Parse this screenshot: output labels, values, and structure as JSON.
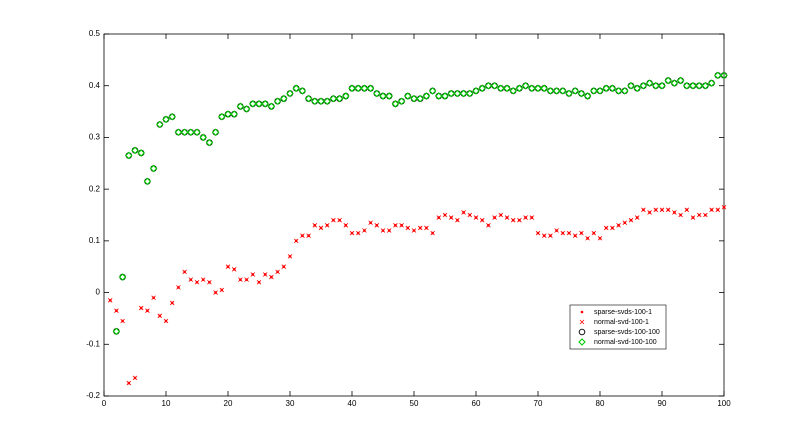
{
  "chart_data": {
    "type": "scatter",
    "x": [
      1,
      2,
      3,
      4,
      5,
      6,
      7,
      8,
      9,
      10,
      11,
      12,
      13,
      14,
      15,
      16,
      17,
      18,
      19,
      20,
      21,
      22,
      23,
      24,
      25,
      26,
      27,
      28,
      29,
      30,
      31,
      32,
      33,
      34,
      35,
      36,
      37,
      38,
      39,
      40,
      41,
      42,
      43,
      44,
      45,
      46,
      47,
      48,
      49,
      50,
      51,
      52,
      53,
      54,
      55,
      56,
      57,
      58,
      59,
      60,
      61,
      62,
      63,
      64,
      65,
      66,
      67,
      68,
      69,
      70,
      71,
      72,
      73,
      74,
      75,
      76,
      77,
      78,
      79,
      80,
      81,
      82,
      83,
      84,
      85,
      86,
      87,
      88,
      89,
      90,
      91,
      92,
      93,
      94,
      95,
      96,
      97,
      98,
      99,
      100
    ],
    "series": [
      {
        "name": "sparse-svds-100-1",
        "color": "#ff0000",
        "marker": "dot",
        "values": [
          -0.015,
          -0.035,
          -0.055,
          -0.175,
          -0.165,
          -0.03,
          -0.035,
          -0.01,
          -0.045,
          -0.055,
          -0.02,
          0.01,
          0.04,
          0.025,
          0.02,
          0.025,
          0.02,
          0.0,
          0.005,
          0.05,
          0.045,
          0.025,
          0.025,
          0.035,
          0.02,
          0.035,
          0.03,
          0.04,
          0.05,
          0.07,
          0.1,
          0.11,
          0.11,
          0.13,
          0.125,
          0.13,
          0.14,
          0.14,
          0.13,
          0.115,
          0.115,
          0.12,
          0.135,
          0.13,
          0.12,
          0.12,
          0.13,
          0.13,
          0.125,
          0.12,
          0.125,
          0.125,
          0.115,
          0.145,
          0.15,
          0.145,
          0.14,
          0.155,
          0.15,
          0.145,
          0.14,
          0.13,
          0.145,
          0.15,
          0.145,
          0.14,
          0.14,
          0.145,
          0.145,
          0.115,
          0.11,
          0.11,
          0.12,
          0.115,
          0.115,
          0.11,
          0.115,
          0.105,
          0.115,
          0.105,
          0.125,
          0.125,
          0.13,
          0.135,
          0.14,
          0.145,
          0.16,
          0.155,
          0.16,
          0.16,
          0.16,
          0.155,
          0.15,
          0.16,
          0.145,
          0.15,
          0.15,
          0.16,
          0.16,
          0.165
        ]
      },
      {
        "name": "normal-svd-100-1",
        "color": "#ff0000",
        "marker": "x",
        "values": [
          -0.015,
          -0.035,
          -0.055,
          -0.175,
          -0.165,
          -0.03,
          -0.035,
          -0.01,
          -0.045,
          -0.055,
          -0.02,
          0.01,
          0.04,
          0.025,
          0.02,
          0.025,
          0.02,
          0.0,
          0.005,
          0.05,
          0.045,
          0.025,
          0.025,
          0.035,
          0.02,
          0.035,
          0.03,
          0.04,
          0.05,
          0.07,
          0.1,
          0.11,
          0.11,
          0.13,
          0.125,
          0.13,
          0.14,
          0.14,
          0.13,
          0.115,
          0.115,
          0.12,
          0.135,
          0.13,
          0.12,
          0.12,
          0.13,
          0.13,
          0.125,
          0.12,
          0.125,
          0.125,
          0.115,
          0.145,
          0.15,
          0.145,
          0.14,
          0.155,
          0.15,
          0.145,
          0.14,
          0.13,
          0.145,
          0.15,
          0.145,
          0.14,
          0.14,
          0.145,
          0.145,
          0.115,
          0.11,
          0.11,
          0.12,
          0.115,
          0.115,
          0.11,
          0.115,
          0.105,
          0.115,
          0.105,
          0.125,
          0.125,
          0.13,
          0.135,
          0.14,
          0.145,
          0.16,
          0.155,
          0.16,
          0.16,
          0.16,
          0.155,
          0.15,
          0.16,
          0.145,
          0.15,
          0.15,
          0.16,
          0.16,
          0.165
        ]
      },
      {
        "name": "sparse-svds-100-100",
        "color": "#000000",
        "marker": "circle",
        "values": [
          null,
          -0.075,
          0.03,
          0.265,
          0.275,
          0.27,
          0.215,
          0.24,
          0.325,
          0.335,
          0.34,
          0.31,
          0.31,
          0.31,
          0.31,
          0.3,
          0.29,
          0.31,
          0.34,
          0.345,
          0.345,
          0.36,
          0.355,
          0.365,
          0.365,
          0.365,
          0.36,
          0.37,
          0.375,
          0.385,
          0.395,
          0.39,
          0.375,
          0.37,
          0.37,
          0.37,
          0.375,
          0.375,
          0.38,
          0.395,
          0.395,
          0.395,
          0.395,
          0.385,
          0.38,
          0.38,
          0.365,
          0.37,
          0.38,
          0.375,
          0.375,
          0.38,
          0.39,
          0.38,
          0.38,
          0.385,
          0.385,
          0.385,
          0.385,
          0.39,
          0.395,
          0.4,
          0.4,
          0.395,
          0.395,
          0.39,
          0.395,
          0.4,
          0.395,
          0.395,
          0.395,
          0.39,
          0.39,
          0.39,
          0.385,
          0.39,
          0.385,
          0.38,
          0.39,
          0.39,
          0.395,
          0.395,
          0.39,
          0.39,
          0.4,
          0.395,
          0.4,
          0.405,
          0.4,
          0.4,
          0.41,
          0.405,
          0.41,
          0.4,
          0.4,
          0.4,
          0.4,
          0.405,
          0.42,
          0.42
        ]
      },
      {
        "name": "normal-svd-100-100",
        "color": "#00cc00",
        "marker": "diamond",
        "values": [
          null,
          -0.075,
          0.03,
          0.265,
          0.275,
          0.27,
          0.215,
          0.24,
          0.325,
          0.335,
          0.34,
          0.31,
          0.31,
          0.31,
          0.31,
          0.3,
          0.29,
          0.31,
          0.34,
          0.345,
          0.345,
          0.36,
          0.355,
          0.365,
          0.365,
          0.365,
          0.36,
          0.37,
          0.375,
          0.385,
          0.395,
          0.39,
          0.375,
          0.37,
          0.37,
          0.37,
          0.375,
          0.375,
          0.38,
          0.395,
          0.395,
          0.395,
          0.395,
          0.385,
          0.38,
          0.38,
          0.365,
          0.37,
          0.38,
          0.375,
          0.375,
          0.38,
          0.39,
          0.38,
          0.38,
          0.385,
          0.385,
          0.385,
          0.385,
          0.39,
          0.395,
          0.4,
          0.4,
          0.395,
          0.395,
          0.39,
          0.395,
          0.4,
          0.395,
          0.395,
          0.395,
          0.39,
          0.39,
          0.39,
          0.385,
          0.39,
          0.385,
          0.38,
          0.39,
          0.39,
          0.395,
          0.395,
          0.39,
          0.39,
          0.4,
          0.395,
          0.4,
          0.405,
          0.4,
          0.4,
          0.41,
          0.405,
          0.41,
          0.4,
          0.4,
          0.4,
          0.4,
          0.405,
          0.42,
          0.42
        ]
      }
    ],
    "xlim": [
      0,
      100
    ],
    "xticks": [
      0,
      10,
      20,
      30,
      40,
      50,
      60,
      70,
      80,
      90,
      100
    ],
    "ylim": [
      -0.2,
      0.5
    ],
    "yticks": [
      -0.2,
      -0.1,
      0,
      0.1,
      0.2,
      0.3,
      0.4,
      0.5
    ],
    "grid": false,
    "legend": "lower right"
  }
}
